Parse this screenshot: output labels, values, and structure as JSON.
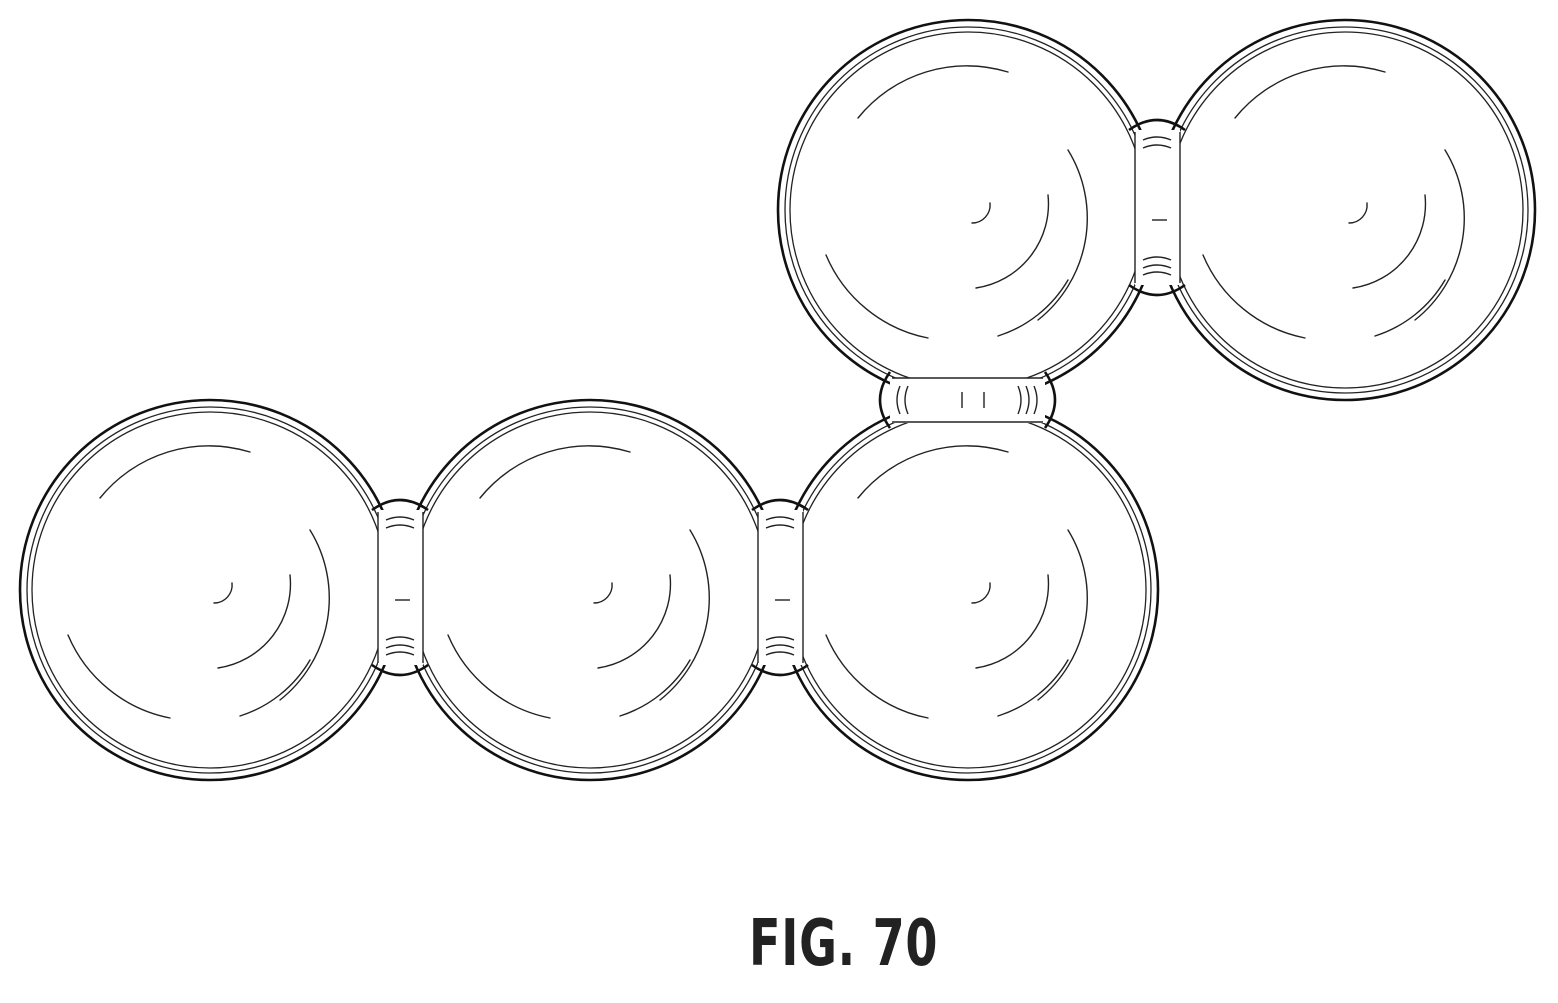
{
  "figure": {
    "label": "FIG. 70"
  }
}
